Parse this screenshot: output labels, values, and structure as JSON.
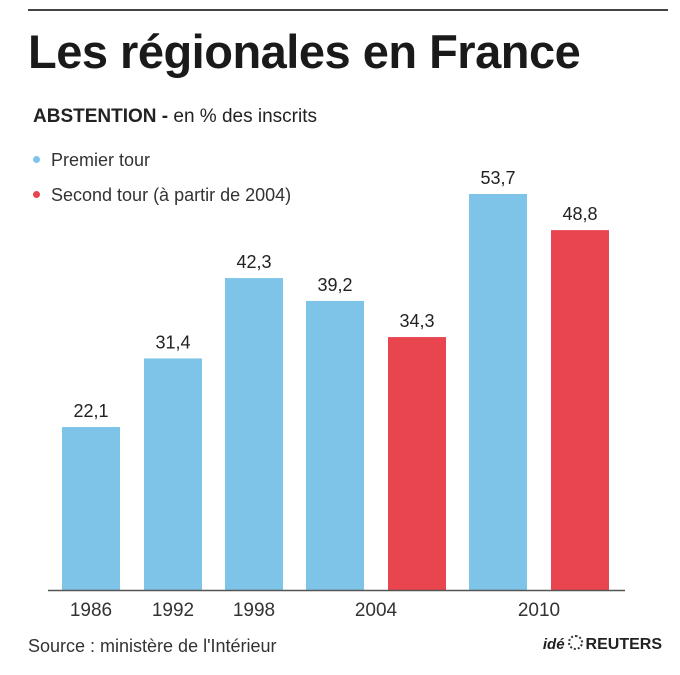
{
  "header": {
    "title": "Les régionales en France",
    "subtitle_strong": "ABSTENTION -",
    "subtitle_rest": " en % des inscrits"
  },
  "colors": {
    "first_round": "#7ec4e8",
    "second_round": "#e8454f",
    "axis": "#555555"
  },
  "footer": {
    "source": "Source : ministère de l'Intérieur",
    "credit_ide": "idé",
    "credit_brand": "REUTERS"
  },
  "chart_data": {
    "type": "bar",
    "title": "Les régionales en France",
    "subtitle": "ABSTENTION - en % des inscrits",
    "xlabel": "",
    "ylabel": "",
    "ylim": [
      0,
      60
    ],
    "grid": false,
    "legend_position": "top-left",
    "categories": [
      "1986",
      "1992",
      "1998",
      "2004",
      "2010"
    ],
    "series": [
      {
        "name": "Premier tour",
        "color": "#7ec4e8",
        "values": [
          22.1,
          31.4,
          42.3,
          39.2,
          53.7
        ],
        "labels": [
          "22,1",
          "31,4",
          "42,3",
          "39,2",
          "53,7"
        ]
      },
      {
        "name": "Second tour (à partir de 2004)",
        "color": "#e8454f",
        "values": [
          null,
          null,
          null,
          34.3,
          48.8
        ],
        "labels": [
          "",
          "",
          "",
          "34,3",
          "48,8"
        ]
      }
    ]
  }
}
